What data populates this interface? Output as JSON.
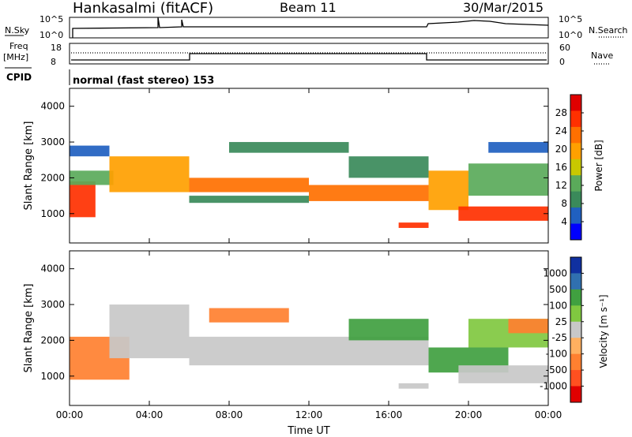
{
  "header": {
    "station": "Hankasalmi (fitACF)",
    "beam": "Beam 11",
    "date": "30/Mar/2015"
  },
  "params_panel": {
    "nsky_label": "N.Sky",
    "nsearch_label": "N.Search",
    "noise_ticks": [
      "10^5",
      "10^0"
    ],
    "freq_label": "Freq",
    "freq_unit": "[MHz]",
    "freq_ticks": [
      "18",
      "8"
    ],
    "nave_label": "Nave",
    "nave_ticks": [
      "60",
      "0"
    ],
    "cpid_label": "CPID",
    "cpid_text": "normal (fast stereo) 153"
  },
  "colors": {
    "power": [
      "#0000ff",
      "#2060c0",
      "#3a8a5a",
      "#5aaa5a",
      "#c8c800",
      "#ffa000",
      "#ff7000",
      "#ff3000",
      "#e00000"
    ],
    "velocity": [
      "#1030a0",
      "#3070b0",
      "#40a040",
      "#80c840",
      "#c8c8c8",
      "#ffb060",
      "#ff8030",
      "#ff5020",
      "#e00000"
    ]
  },
  "chart_data": [
    {
      "type": "heatmap",
      "name": "power",
      "ylabel": "Slant Range [km]",
      "ylim": [
        180,
        4500
      ],
      "yticks": [
        1000,
        2000,
        3000,
        4000
      ],
      "xlim": [
        0,
        24
      ],
      "xticks": [
        "00:00",
        "04:00",
        "08:00",
        "12:00",
        "16:00",
        "20:00",
        "00:00"
      ],
      "colorbar": {
        "label": "Power [dB]",
        "range": [
          0,
          32
        ],
        "ticks": [
          4,
          8,
          12,
          16,
          20,
          24,
          28
        ]
      },
      "bands": [
        {
          "t0": 0.0,
          "t1": 1.3,
          "r0": 900,
          "r1": 1900,
          "value": 26
        },
        {
          "t0": 0.0,
          "t1": 2.2,
          "r0": 1800,
          "r1": 2200,
          "value": 12
        },
        {
          "t0": 0.0,
          "t1": 2.0,
          "r0": 2600,
          "r1": 2900,
          "value": 6
        },
        {
          "t0": 2.0,
          "t1": 6.0,
          "r0": 1600,
          "r1": 2600,
          "value": 18
        },
        {
          "t0": 6.0,
          "t1": 12.0,
          "r0": 1600,
          "r1": 2000,
          "value": 22
        },
        {
          "t0": 6.0,
          "t1": 12.0,
          "r0": 1300,
          "r1": 1500,
          "value": 8
        },
        {
          "t0": 12.0,
          "t1": 18.0,
          "r0": 1350,
          "r1": 1800,
          "value": 24
        },
        {
          "t0": 14.0,
          "t1": 18.0,
          "r0": 2000,
          "r1": 2600,
          "value": 10
        },
        {
          "t0": 16.5,
          "t1": 18.0,
          "r0": 600,
          "r1": 750,
          "value": 26
        },
        {
          "t0": 18.0,
          "t1": 20.0,
          "r0": 1100,
          "r1": 2200,
          "value": 20
        },
        {
          "t0": 19.5,
          "t1": 24.0,
          "r0": 800,
          "r1": 1200,
          "value": 28
        },
        {
          "t0": 20.0,
          "t1": 24.0,
          "r0": 1500,
          "r1": 2400,
          "value": 12
        },
        {
          "t0": 8.0,
          "t1": 14.0,
          "r0": 2700,
          "r1": 3000,
          "value": 8
        },
        {
          "t0": 21.0,
          "t1": 24.0,
          "r0": 2700,
          "r1": 3000,
          "value": 6
        }
      ]
    },
    {
      "type": "heatmap",
      "name": "velocity",
      "ylabel": "Slant Range [km]",
      "xlabel": "Time UT",
      "ylim": [
        180,
        4500
      ],
      "yticks": [
        1000,
        2000,
        3000,
        4000
      ],
      "xlim": [
        0,
        24
      ],
      "xticks": [
        "00:00",
        "04:00",
        "08:00",
        "12:00",
        "16:00",
        "20:00",
        "00:00"
      ],
      "colorbar": {
        "label": "Velocity [m s⁻¹]",
        "ticks": [
          "1000",
          "500",
          "100",
          "25",
          "-25",
          "-100",
          "-500",
          "-1000"
        ]
      },
      "bands": [
        {
          "t0": 0.0,
          "t1": 3.0,
          "r0": 900,
          "r1": 2100,
          "value": -300
        },
        {
          "t0": 2.0,
          "t1": 6.0,
          "r0": 1500,
          "r1": 3000,
          "value": 0
        },
        {
          "t0": 6.0,
          "t1": 18.0,
          "r0": 1300,
          "r1": 2100,
          "value": 0
        },
        {
          "t0": 7.0,
          "t1": 11.0,
          "r0": 2500,
          "r1": 2900,
          "value": -400
        },
        {
          "t0": 14.0,
          "t1": 18.0,
          "r0": 2000,
          "r1": 2600,
          "value": 200
        },
        {
          "t0": 16.5,
          "t1": 18.0,
          "r0": 650,
          "r1": 800,
          "value": 0
        },
        {
          "t0": 18.0,
          "t1": 22.0,
          "r0": 1100,
          "r1": 1800,
          "value": 150
        },
        {
          "t0": 19.5,
          "t1": 24.0,
          "r0": 800,
          "r1": 1300,
          "value": 0
        },
        {
          "t0": 20.0,
          "t1": 24.0,
          "r0": 1800,
          "r1": 2600,
          "value": 80
        },
        {
          "t0": 22.0,
          "t1": 24.0,
          "r0": 2200,
          "r1": 2600,
          "value": -150
        }
      ]
    }
  ]
}
